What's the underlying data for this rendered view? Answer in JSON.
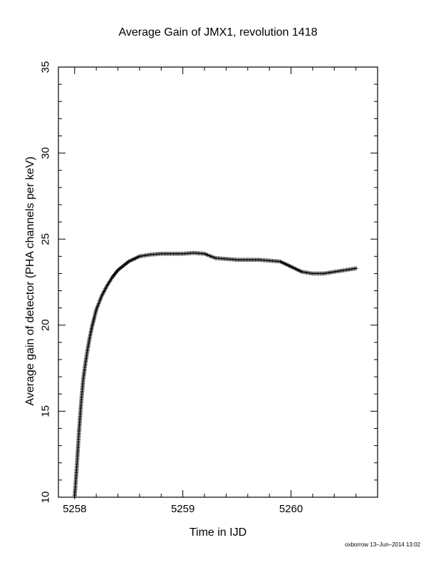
{
  "chart_data": {
    "type": "scatter",
    "title": "Average Gain of JMX1, revolution 1418",
    "xlabel": "Time in IJD",
    "ylabel": "Average gain of detector (PHA channels per keV)",
    "xlim": [
      5257.85,
      5260.8
    ],
    "ylim": [
      10,
      35
    ],
    "xticks": [
      5258,
      5259,
      5260
    ],
    "xtick_labels": [
      "5258",
      "5259",
      "5260"
    ],
    "yticks": [
      10,
      15,
      20,
      25,
      30,
      35
    ],
    "ytick_labels": [
      "10",
      "15",
      "20",
      "25",
      "30",
      "35"
    ],
    "grid": false,
    "marker": "plus",
    "color": "#000000",
    "series": [
      {
        "x": [
          5258.0,
          5258.02,
          5258.04,
          5258.06,
          5258.08,
          5258.1,
          5258.12,
          5258.14,
          5258.16,
          5258.18,
          5258.2,
          5258.25,
          5258.3,
          5258.35,
          5258.4,
          5258.5,
          5258.6,
          5258.7,
          5258.8,
          5258.9,
          5259.0,
          5259.1,
          5259.2,
          5259.3,
          5259.4,
          5259.5,
          5259.6,
          5259.7,
          5259.8,
          5259.9,
          5260.0,
          5260.1,
          5260.2,
          5260.3,
          5260.4,
          5260.5,
          5260.6
        ],
        "y": [
          10.0,
          11.8,
          13.8,
          15.5,
          16.9,
          17.8,
          18.6,
          19.3,
          19.9,
          20.4,
          20.9,
          21.7,
          22.3,
          22.8,
          23.2,
          23.7,
          24.0,
          24.1,
          24.15,
          24.15,
          24.15,
          24.2,
          24.15,
          23.9,
          23.85,
          23.8,
          23.8,
          23.8,
          23.75,
          23.7,
          23.4,
          23.1,
          23.0,
          23.0,
          23.1,
          23.2,
          23.3
        ]
      }
    ]
  },
  "footer": "oxborrow 13–Jun–2014 13:02"
}
